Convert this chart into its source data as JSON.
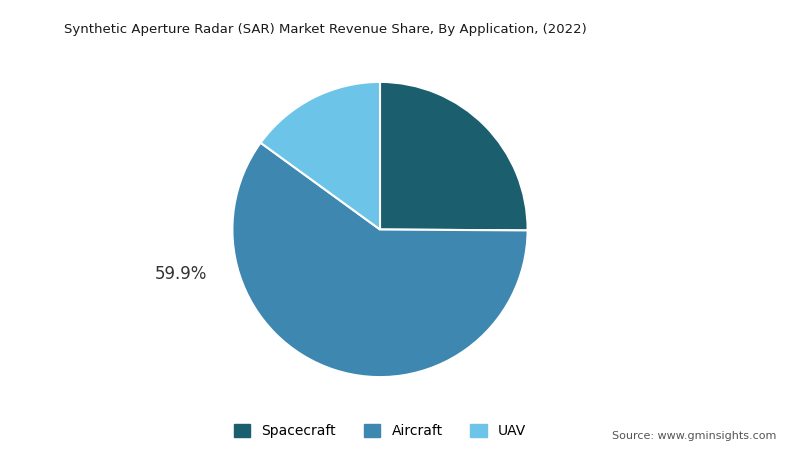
{
  "title": "Synthetic Aperture Radar (SAR) Market Revenue Share, By Application, (2022)",
  "segments": [
    "Spacecraft",
    "Aircraft",
    "UAV"
  ],
  "values": [
    25.1,
    59.9,
    15.0
  ],
  "colors": [
    "#1b5e6e",
    "#3d87b0",
    "#6cc5e8"
  ],
  "label_text": "59.9%",
  "label_segment": 1,
  "source": "Source: www.gminsights.com",
  "background_color": "#ffffff",
  "startangle": 90,
  "wedge_linewidth": 1.5,
  "wedge_edgecolor": "#ffffff"
}
